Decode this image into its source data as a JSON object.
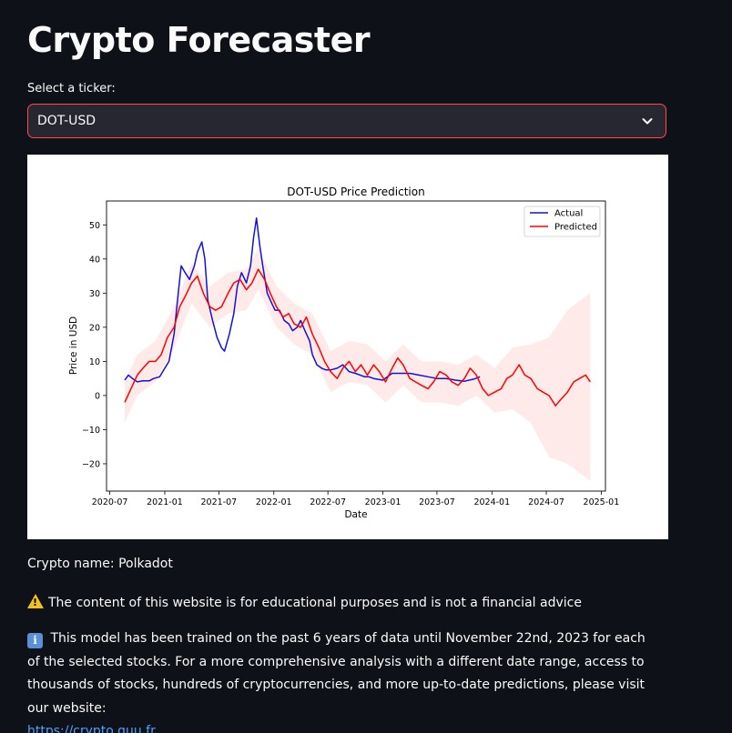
{
  "app": {
    "title": "Crypto Forecaster"
  },
  "ticker_select": {
    "label": "Select a ticker:",
    "value": "DOT-USD"
  },
  "chart_data": {
    "type": "line",
    "title": "DOT-USD Price Prediction",
    "xlabel": "Date",
    "ylabel": "Price in USD",
    "ylim": [
      -28,
      57
    ],
    "xlim": [
      "2020-06-20",
      "2025-01-15"
    ],
    "xticks": [
      "2020-07",
      "2021-01",
      "2021-07",
      "2022-01",
      "2022-07",
      "2023-01",
      "2023-07",
      "2024-01",
      "2024-07",
      "2025-01"
    ],
    "yticks": [
      -20,
      -10,
      0,
      10,
      20,
      30,
      40,
      50
    ],
    "legend_position": "top-right",
    "grid": false,
    "series": [
      {
        "name": "Actual",
        "color": "#1111dd",
        "x": [
          "2020-08-20",
          "2020-09-01",
          "2020-09-15",
          "2020-10-01",
          "2020-10-20",
          "2020-11-10",
          "2020-11-25",
          "2020-12-15",
          "2021-01-01",
          "2021-01-15",
          "2021-02-01",
          "2021-02-15",
          "2021-02-25",
          "2021-03-10",
          "2021-03-25",
          "2021-04-10",
          "2021-04-20",
          "2021-05-05",
          "2021-05-15",
          "2021-05-25",
          "2021-06-10",
          "2021-06-25",
          "2021-07-10",
          "2021-07-20",
          "2021-08-05",
          "2021-08-20",
          "2021-09-01",
          "2021-09-15",
          "2021-10-01",
          "2021-10-15",
          "2021-10-25",
          "2021-11-04",
          "2021-11-15",
          "2021-11-25",
          "2021-12-10",
          "2021-12-25",
          "2022-01-05",
          "2022-01-20",
          "2022-02-05",
          "2022-02-20",
          "2022-03-05",
          "2022-03-20",
          "2022-04-01",
          "2022-04-15",
          "2022-05-01",
          "2022-05-10",
          "2022-05-25",
          "2022-06-10",
          "2022-06-25",
          "2022-07-10",
          "2022-08-01",
          "2022-08-20",
          "2022-09-10",
          "2022-10-01",
          "2022-11-01",
          "2022-11-15",
          "2022-12-01",
          "2023-01-01",
          "2023-02-01",
          "2023-03-01",
          "2023-04-01",
          "2023-05-01",
          "2023-06-01",
          "2023-07-01",
          "2023-08-01",
          "2023-09-01",
          "2023-10-01",
          "2023-11-01",
          "2023-11-22"
        ],
        "y": [
          4.5,
          6,
          5,
          4,
          4.3,
          4.3,
          5,
          5.5,
          8,
          10,
          18,
          30,
          38,
          36,
          34,
          38,
          42,
          45,
          40,
          28,
          22,
          17,
          14,
          13,
          18,
          24,
          32,
          36,
          33,
          38,
          46,
          52,
          44,
          38,
          30,
          27,
          25,
          25,
          22,
          21,
          19,
          20,
          22,
          19,
          16,
          12,
          9,
          8,
          7.5,
          7.5,
          8,
          9,
          7,
          6.5,
          5.5,
          5.5,
          5,
          4.5,
          6.5,
          6.5,
          6.5,
          6,
          5.5,
          5,
          5,
          4.5,
          4.2,
          4.8,
          5.5
        ]
      },
      {
        "name": "Predicted",
        "color": "#ff0000",
        "x": [
          "2020-08-20",
          "2020-09-10",
          "2020-10-01",
          "2020-10-20",
          "2020-11-10",
          "2020-12-01",
          "2020-12-20",
          "2021-01-10",
          "2021-02-01",
          "2021-02-20",
          "2021-03-10",
          "2021-04-01",
          "2021-04-20",
          "2021-05-10",
          "2021-06-01",
          "2021-06-20",
          "2021-07-10",
          "2021-08-01",
          "2021-08-20",
          "2021-09-10",
          "2021-10-01",
          "2021-10-20",
          "2021-11-10",
          "2021-12-01",
          "2021-12-20",
          "2022-01-10",
          "2022-02-01",
          "2022-02-20",
          "2022-03-10",
          "2022-04-01",
          "2022-04-20",
          "2022-05-10",
          "2022-06-01",
          "2022-06-20",
          "2022-07-10",
          "2022-08-01",
          "2022-08-20",
          "2022-09-10",
          "2022-10-01",
          "2022-10-20",
          "2022-11-10",
          "2022-12-01",
          "2022-12-20",
          "2023-01-10",
          "2023-02-01",
          "2023-02-20",
          "2023-03-10",
          "2023-04-01",
          "2023-04-20",
          "2023-05-10",
          "2023-06-01",
          "2023-06-20",
          "2023-07-10",
          "2023-08-01",
          "2023-08-20",
          "2023-09-10",
          "2023-10-01",
          "2023-10-20",
          "2023-11-10",
          "2023-12-01",
          "2023-12-20",
          "2024-01-10",
          "2024-02-01",
          "2024-02-20",
          "2024-03-10",
          "2024-04-01",
          "2024-04-20",
          "2024-05-10",
          "2024-06-01",
          "2024-06-20",
          "2024-07-10",
          "2024-08-01",
          "2024-08-20",
          "2024-09-10",
          "2024-10-01",
          "2024-10-20",
          "2024-11-10",
          "2024-11-25"
        ],
        "y": [
          -2,
          2,
          6,
          8,
          10,
          10,
          12,
          17,
          20,
          26,
          29,
          33,
          35,
          30,
          26,
          25,
          26,
          30,
          33,
          34,
          31,
          33,
          37,
          34,
          30,
          26,
          23,
          24,
          21,
          20,
          23,
          18,
          14,
          10,
          7,
          5,
          8,
          10,
          7,
          9,
          6,
          9,
          7,
          4,
          8,
          11,
          9,
          5,
          4,
          3,
          2,
          4,
          7,
          6,
          4,
          3,
          5,
          8,
          6,
          2,
          0,
          1,
          2,
          5,
          6,
          9,
          6,
          5,
          2,
          1,
          0,
          -3,
          -1,
          1,
          4,
          5,
          6,
          4
        ]
      }
    ],
    "confidence_band": {
      "color": "#ffe6e6",
      "x": [
        "2020-08-20",
        "2020-10-01",
        "2020-12-01",
        "2021-02-01",
        "2021-04-01",
        "2021-06-01",
        "2021-08-01",
        "2021-10-01",
        "2021-11-10",
        "2022-01-10",
        "2022-03-10",
        "2022-05-10",
        "2022-07-10",
        "2022-09-10",
        "2022-11-10",
        "2023-01-10",
        "2023-03-10",
        "2023-05-10",
        "2023-07-10",
        "2023-09-10",
        "2023-11-10",
        "2024-01-10",
        "2024-03-10",
        "2024-05-10",
        "2024-07-10",
        "2024-09-10",
        "2024-11-25"
      ],
      "upper": [
        4,
        12,
        16,
        26,
        39,
        32,
        36,
        37,
        43,
        32,
        27,
        24,
        13,
        16,
        15,
        10,
        15,
        10,
        10,
        9,
        12,
        8,
        14,
        15,
        17,
        25,
        30
      ],
      "lower": [
        -8,
        0,
        4,
        14,
        27,
        20,
        24,
        25,
        31,
        20,
        15,
        12,
        1,
        4,
        3,
        -2,
        3,
        -2,
        -2,
        -3,
        0,
        -5,
        -4,
        -8,
        -18,
        -20,
        -25
      ]
    }
  },
  "info": {
    "crypto_name": "Crypto name: Polkadot",
    "disclaimer": "The content of this website is for educational purposes and is not a financial advice",
    "notice": "This model has been trained on the past 6 years of data until November 22nd, 2023 for each of the selected stocks. For a more comprehensive analysis with a different date range, access to thousands of stocks, hundreds of cryptocurrencies, and more up-to-date predictions, please visit our website:",
    "link_text": "https://crypto.quu.fr"
  },
  "icons": {
    "dropdown": "chevron-down-icon",
    "warning": "warning-icon",
    "info": "info-icon"
  },
  "colors": {
    "background": "#0e1117",
    "select_border": "#ff4b4b",
    "select_bg": "#262730",
    "link": "#4ea0ff"
  }
}
